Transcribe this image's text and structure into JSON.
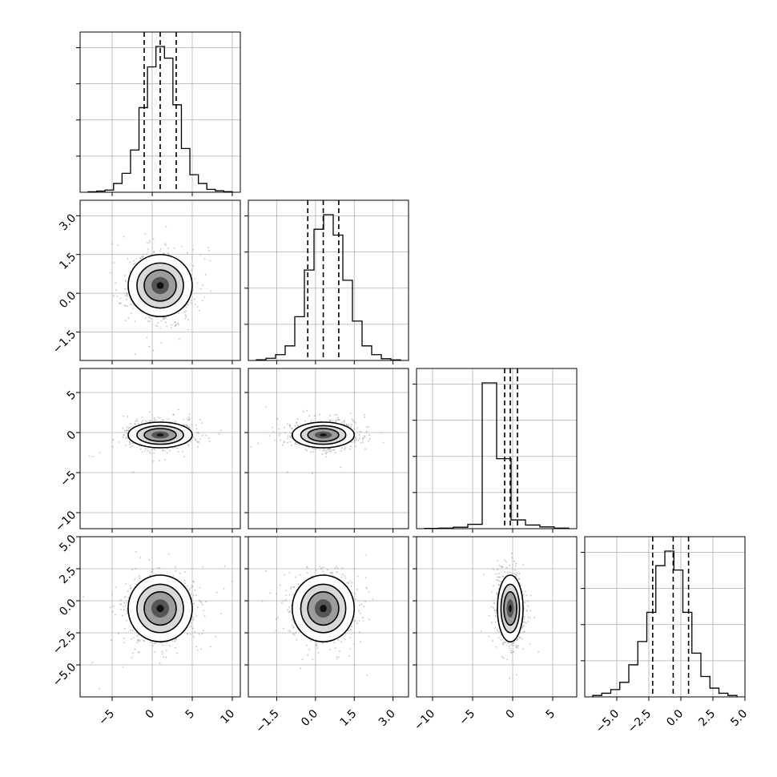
{
  "chart_data": {
    "type": "corner",
    "n_params": 4,
    "grid": true,
    "params": [
      {
        "name": "",
        "range": [
          -9,
          11
        ],
        "ticks": [
          -5,
          0,
          5,
          10
        ],
        "tick_labels": [
          "−5",
          "0",
          "5",
          "10"
        ],
        "mean": 1.0,
        "sd": 2.0,
        "quantiles": [
          -1.0,
          1.0,
          3.0
        ],
        "hist": [
          0.003,
          0.008,
          0.015,
          0.06,
          0.13,
          0.29,
          0.58,
          0.86,
          1.0,
          0.92,
          0.6,
          0.3,
          0.12,
          0.06,
          0.02,
          0.01,
          0.004
        ]
      },
      {
        "name": "",
        "range": [
          -2.6,
          3.6
        ],
        "ticks": [
          -1.5,
          0.0,
          1.5,
          3.0
        ],
        "tick_labels": [
          "−1.5",
          "0.0",
          "1.5",
          "3.0"
        ],
        "mean": 0.3,
        "sd": 0.6,
        "quantiles": [
          -0.3,
          0.3,
          0.9
        ],
        "hist": [
          0.005,
          0.015,
          0.04,
          0.1,
          0.3,
          0.62,
          0.9,
          1.0,
          0.86,
          0.55,
          0.27,
          0.1,
          0.04,
          0.012,
          0.004
        ]
      },
      {
        "name": "",
        "range": [
          -12,
          8
        ],
        "ticks": [
          -10,
          -5,
          0,
          5
        ],
        "tick_labels": [
          "−10",
          "−5",
          "0",
          "5"
        ],
        "mean": -0.3,
        "sd": 0.8,
        "quantiles": [
          -1.0,
          -0.3,
          0.6
        ],
        "hist": [
          0.002,
          0.004,
          0.01,
          0.03,
          1.0,
          0.48,
          0.06,
          0.025,
          0.012,
          0.004
        ]
      },
      {
        "name": "",
        "range": [
          -7.5,
          5.0
        ],
        "ticks": [
          -5.0,
          -2.5,
          0.0,
          2.5,
          5.0
        ],
        "tick_labels": [
          "−5.0",
          "−2.5",
          "0.0",
          "2.5",
          "5.0"
        ],
        "mean": -0.6,
        "sd": 1.3,
        "quantiles": [
          -2.2,
          -0.6,
          0.6
        ],
        "hist": [
          0.01,
          0.025,
          0.05,
          0.1,
          0.22,
          0.38,
          0.58,
          0.9,
          1.0,
          0.87,
          0.58,
          0.3,
          0.14,
          0.06,
          0.025,
          0.01
        ]
      }
    ],
    "y_tick_labels_visible": {
      "1": [
        "3.0",
        "1.5",
        "0.0",
        "−1.5"
      ],
      "2": [
        "5",
        "0",
        "−5",
        "−10"
      ],
      "3": [
        "5.0",
        "2.5",
        "0.0",
        "−2.5",
        "−5.0"
      ]
    }
  }
}
